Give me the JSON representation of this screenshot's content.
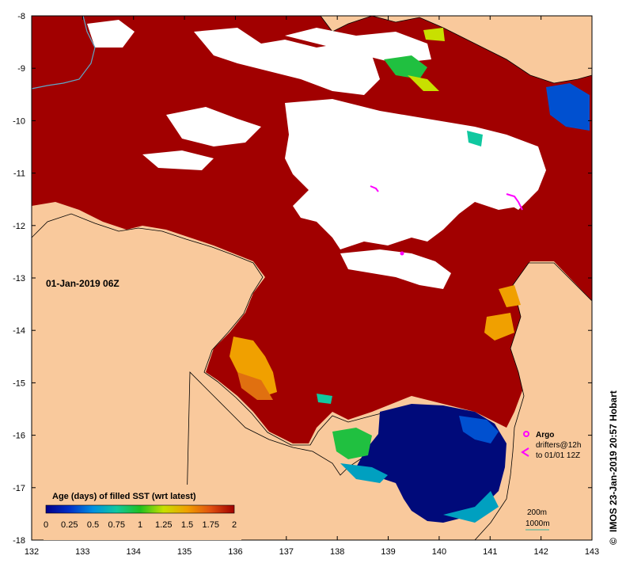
{
  "map": {
    "x_ticks": [
      "132",
      "133",
      "134",
      "135",
      "136",
      "137",
      "138",
      "139",
      "140",
      "141",
      "142",
      "143"
    ],
    "y_ticks": [
      "-8",
      "-9",
      "-10",
      "-11",
      "-12",
      "-13",
      "-14",
      "-15",
      "-16",
      "-17",
      "-18"
    ],
    "date_stamp": "01-Jan-2019 06Z",
    "credit": "IMOS 23-Jan-2019 20:57 Hobart",
    "copyright_symbol": "©",
    "colors": {
      "land": "#f9c99c",
      "stale": "#a10000",
      "no_data": "#ffffff",
      "fresh": "#000a7a",
      "coast": "#000000",
      "river": "#5fa8c8"
    }
  },
  "legend": {
    "title": "Age (days) of filled SST (wrt latest)",
    "tick_labels": [
      "0",
      "0.25",
      "0.5",
      "0.75",
      "1",
      "1.25",
      "1.5",
      "1.75",
      "2"
    ],
    "gradient_colors": [
      "#00008a",
      "#0030c8",
      "#0090e0",
      "#10c8a0",
      "#20c020",
      "#c8e000",
      "#f0a000",
      "#e05010",
      "#a00000"
    ]
  },
  "overlay_legend": {
    "argo_label": "Argo",
    "drifters_label": "drifters@12h",
    "drifters_time": "to 01/01 12Z",
    "argo_icon": "argo-float-icon",
    "drifter_icon": "drifter-track-icon",
    "contour_200": "200m",
    "contour_1000": "1000m"
  }
}
